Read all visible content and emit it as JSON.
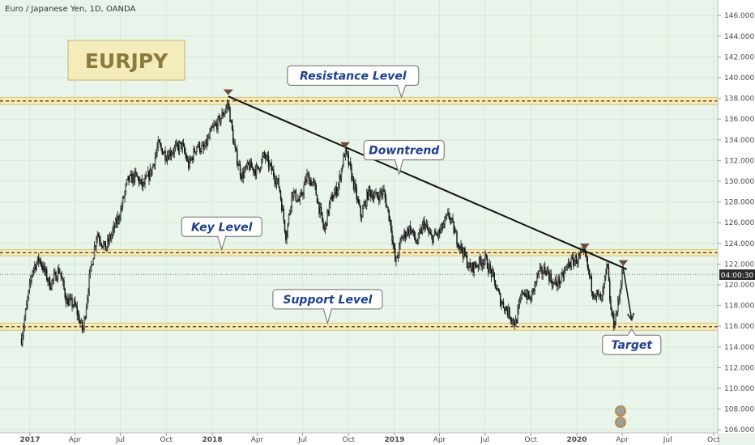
{
  "chart_data": {
    "type": "candlestick",
    "title": "Euro / Japanese Yen, 1D, OANDA",
    "symbol_box": "EURJPY",
    "price_badge": "04:00:30",
    "ylim": [
      105.7,
      147.5
    ],
    "y_ticks": [
      "106.000",
      "108.000",
      "110.000",
      "112.000",
      "114.000",
      "116.000",
      "118.000",
      "120.000",
      "122.000",
      "124.000",
      "126.000",
      "128.000",
      "130.000",
      "132.000",
      "134.000",
      "136.000",
      "138.000",
      "140.000",
      "142.000",
      "144.000",
      "146.000"
    ],
    "x_ticks": [
      "2017",
      "Apr",
      "Jul",
      "Oct",
      "2018",
      "Apr",
      "Jul",
      "Oct",
      "2019",
      "Apr",
      "Jul",
      "Oct",
      "2020",
      "Apr",
      "Jul",
      "Oct"
    ],
    "price_path": [
      [
        "2016-12-15",
        114.8
      ],
      [
        "2017-01-06",
        121.5
      ],
      [
        "2017-01-20",
        122.5
      ],
      [
        "2017-02-10",
        120.0
      ],
      [
        "2017-03-01",
        121.5
      ],
      [
        "2017-03-15",
        118.5
      ],
      [
        "2017-04-01",
        118.0
      ],
      [
        "2017-04-17",
        115.5
      ],
      [
        "2017-05-01",
        121.0
      ],
      [
        "2017-05-15",
        125.0
      ],
      [
        "2017-06-01",
        123.5
      ],
      [
        "2017-06-15",
        125.0
      ],
      [
        "2017-07-01",
        127.0
      ],
      [
        "2017-07-15",
        130.0
      ],
      [
        "2017-08-01",
        130.5
      ],
      [
        "2017-08-15",
        129.5
      ],
      [
        "2017-09-01",
        131.0
      ],
      [
        "2017-09-15",
        133.5
      ],
      [
        "2017-10-01",
        132.5
      ],
      [
        "2017-10-15",
        133.0
      ],
      [
        "2017-11-01",
        133.5
      ],
      [
        "2017-11-15",
        131.5
      ],
      [
        "2017-12-01",
        133.5
      ],
      [
        "2017-12-15",
        133.0
      ],
      [
        "2018-01-01",
        135.0
      ],
      [
        "2018-01-15",
        135.8
      ],
      [
        "2018-02-02",
        137.5
      ],
      [
        "2018-02-15",
        133.0
      ],
      [
        "2018-03-01",
        130.5
      ],
      [
        "2018-03-15",
        131.5
      ],
      [
        "2018-04-01",
        131.0
      ],
      [
        "2018-04-15",
        132.5
      ],
      [
        "2018-05-01",
        131.0
      ],
      [
        "2018-05-15",
        129.5
      ],
      [
        "2018-05-29",
        124.6
      ],
      [
        "2018-06-10",
        129.0
      ],
      [
        "2018-06-25",
        128.0
      ],
      [
        "2018-07-10",
        130.5
      ],
      [
        "2018-07-25",
        129.5
      ],
      [
        "2018-08-13",
        125.2
      ],
      [
        "2018-08-25",
        128.0
      ],
      [
        "2018-09-10",
        129.5
      ],
      [
        "2018-09-24",
        133.0
      ],
      [
        "2018-10-05",
        131.0
      ],
      [
        "2018-10-26",
        126.6
      ],
      [
        "2018-11-10",
        129.0
      ],
      [
        "2018-11-25",
        128.5
      ],
      [
        "2018-12-10",
        129.0
      ],
      [
        "2018-12-24",
        126.0
      ],
      [
        "2019-01-03",
        122.0
      ],
      [
        "2019-01-15",
        124.5
      ],
      [
        "2019-02-01",
        125.5
      ],
      [
        "2019-02-15",
        124.0
      ],
      [
        "2019-03-01",
        126.0
      ],
      [
        "2019-03-15",
        124.5
      ],
      [
        "2019-04-01",
        125.0
      ],
      [
        "2019-04-20",
        126.8
      ],
      [
        "2019-05-05",
        124.5
      ],
      [
        "2019-05-20",
        123.0
      ],
      [
        "2019-06-01",
        121.5
      ],
      [
        "2019-06-15",
        122.0
      ],
      [
        "2019-07-01",
        122.5
      ],
      [
        "2019-07-15",
        121.0
      ],
      [
        "2019-08-01",
        118.5
      ],
      [
        "2019-08-15",
        117.5
      ],
      [
        "2019-08-31",
        116.2
      ],
      [
        "2019-09-15",
        119.5
      ],
      [
        "2019-09-30",
        118.5
      ],
      [
        "2019-10-15",
        121.0
      ],
      [
        "2019-11-01",
        121.5
      ],
      [
        "2019-11-15",
        120.0
      ],
      [
        "2019-12-01",
        120.5
      ],
      [
        "2019-12-15",
        122.0
      ],
      [
        "2020-01-02",
        122.5
      ],
      [
        "2020-01-17",
        123.0
      ],
      [
        "2020-02-01",
        119.5
      ],
      [
        "2020-02-20",
        118.5
      ],
      [
        "2020-03-02",
        122.0
      ],
      [
        "2020-03-09",
        117.5
      ],
      [
        "2020-03-16",
        116.2
      ],
      [
        "2020-03-25",
        118.5
      ],
      [
        "2020-04-01",
        121.5
      ],
      [
        "2020-04-03",
        121.6
      ]
    ],
    "levels": [
      {
        "label": "Resistance Level",
        "y": [
          137.4,
          138.1
        ]
      },
      {
        "label": "Key Level",
        "y": [
          122.8,
          123.4
        ]
      },
      {
        "label": "Support Level",
        "y": [
          115.6,
          116.3
        ]
      }
    ],
    "downtrend_line": [
      [
        "2018-02-02",
        138.2
      ],
      [
        "2020-04-10",
        121.5
      ]
    ],
    "projection": [
      [
        "2020-04-03",
        121.6
      ],
      [
        "2020-04-20",
        116.6
      ]
    ],
    "markers": [
      {
        "date": "2018-02-02",
        "y": 138.4
      },
      {
        "date": "2018-09-24",
        "y": 133.3
      },
      {
        "date": "2020-01-17",
        "y": 123.5
      },
      {
        "date": "2020-04-03",
        "y": 121.9
      }
    ],
    "last_price": 121.0,
    "callouts": [
      {
        "text": "Resistance Level",
        "box": [
          "2018-10-10",
          140.2
        ],
        "anchor": [
          "2019-01-15",
          138.1
        ]
      },
      {
        "text": "Downtrend",
        "box": [
          "2019-01-20",
          133.0
        ],
        "anchor": [
          "2019-01-10",
          130.7
        ]
      },
      {
        "text": "Key Level",
        "box": [
          "2018-01-20",
          125.6
        ],
        "anchor": [
          "2018-01-20",
          123.4
        ]
      },
      {
        "text": "Support Level",
        "box": [
          "2018-08-20",
          118.6
        ],
        "anchor": [
          "2018-08-20",
          116.3
        ]
      },
      {
        "text": "Target",
        "box": [
          "2020-04-20",
          114.2
        ],
        "anchor": [
          "2020-04-20",
          115.7
        ]
      }
    ]
  }
}
